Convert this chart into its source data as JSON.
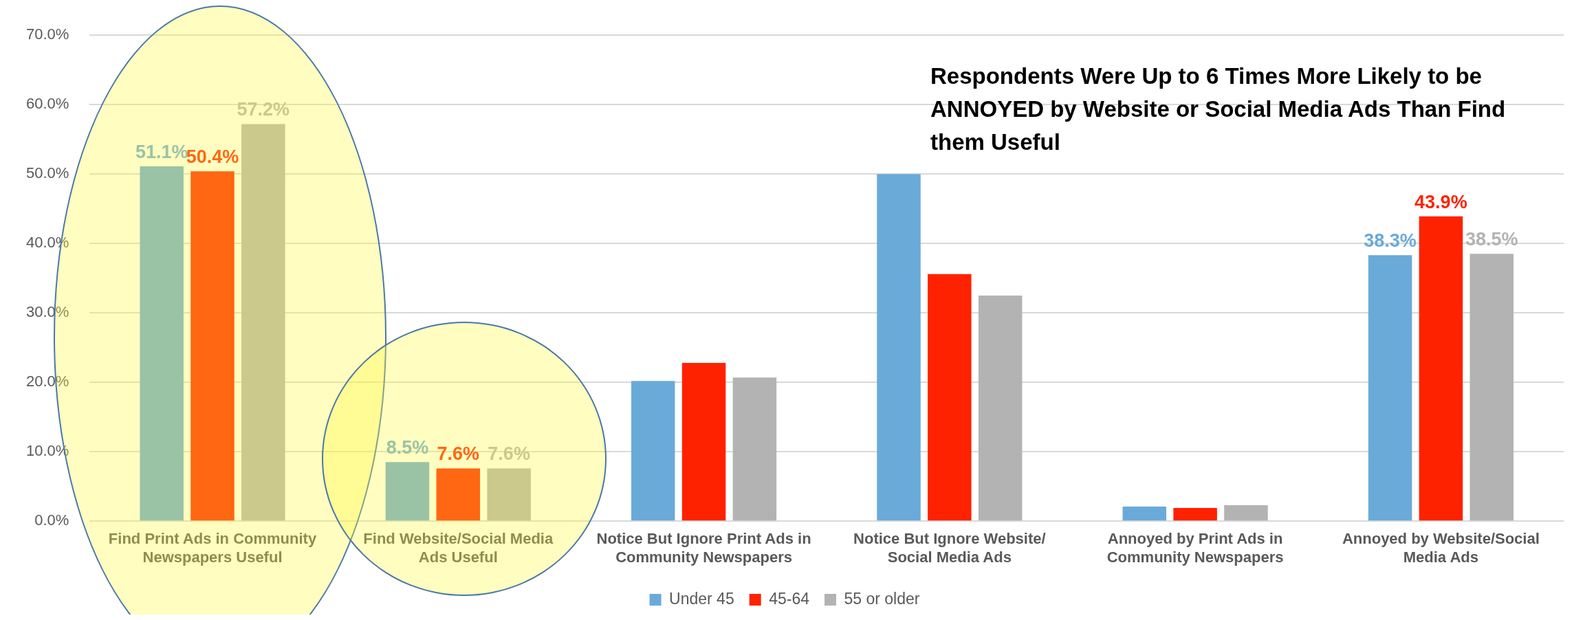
{
  "chart_data": {
    "type": "bar",
    "categories": [
      "Find Print Ads in Community Newspapers Useful",
      "Find Website/Social Media Ads Useful",
      "Notice But Ignore Print Ads in Community Newspapers",
      "Notice But Ignore Website/Social Media Ads",
      "Annoyed by Print Ads in Community Newspapers",
      "Annoyed by Website/Social Media Ads"
    ],
    "series": [
      {
        "name": "Under 45",
        "color": "#6aaad9",
        "values": [
          51.1,
          8.5,
          20.2,
          50.0,
          2.1,
          38.3
        ],
        "value_labels": [
          "51.1%",
          "8.5%",
          null,
          null,
          null,
          "38.3%"
        ]
      },
      {
        "name": "45-64",
        "color": "#ff2200",
        "values": [
          50.4,
          7.6,
          22.8,
          35.6,
          1.9,
          43.9
        ],
        "value_labels": [
          "50.4%",
          "7.6%",
          null,
          null,
          null,
          "43.9%"
        ]
      },
      {
        "name": "55 or older",
        "color": "#b3b3b3",
        "values": [
          57.2,
          7.6,
          20.7,
          32.5,
          2.3,
          38.5
        ],
        "value_labels": [
          "57.2%",
          "7.6%",
          null,
          null,
          null,
          "38.5%"
        ]
      }
    ],
    "ylim": [
      0,
      70
    ],
    "yticks": [
      {
        "value": 0,
        "label": "0.0%"
      },
      {
        "value": 10,
        "label": "10.0%"
      },
      {
        "value": 20,
        "label": "20.0%"
      },
      {
        "value": 30,
        "label": "30.0%"
      },
      {
        "value": 40,
        "label": "40.0%"
      },
      {
        "value": 50,
        "label": "50.0%"
      },
      {
        "value": 60,
        "label": "60.0%"
      },
      {
        "value": 70,
        "label": "70.0%"
      }
    ],
    "grid": "y",
    "legend": "bottom",
    "annotations": [
      "Respondents Were Up to 6 Times More Likely to be ANNOYED by Website or Social Media Ads Than Find them Useful"
    ]
  }
}
